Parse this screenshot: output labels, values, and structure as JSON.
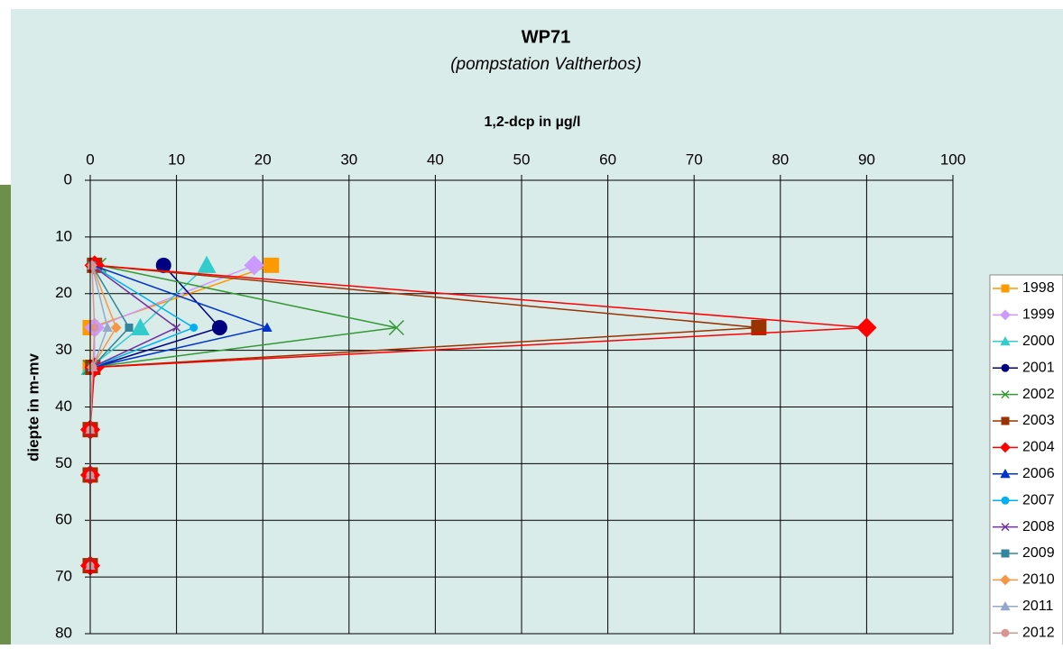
{
  "chart_data": {
    "type": "line",
    "title": "WP71",
    "subtitle": "(pompstation Valtherbos)",
    "x_label": "1,2-dcp in µg/l",
    "y_label": "diepte in m-mv",
    "y": [
      15,
      26,
      33,
      44,
      52,
      68
    ],
    "xlim": [
      0,
      100
    ],
    "xticks": [
      0,
      10,
      20,
      30,
      40,
      50,
      60,
      70,
      80,
      90,
      100
    ],
    "ylim": [
      0,
      80
    ],
    "yticks": [
      0,
      10,
      20,
      30,
      40,
      50,
      60,
      70,
      80
    ],
    "y_inverted": true,
    "grid": true,
    "series": [
      {
        "name": "1998",
        "color": "#ff9900",
        "marker": "square",
        "values": [
          21,
          0,
          0,
          null,
          null,
          null
        ]
      },
      {
        "name": "1999",
        "color": "#cc99ff",
        "marker": "diamond",
        "values": [
          19,
          0.5,
          0.5,
          null,
          null,
          null
        ]
      },
      {
        "name": "2000",
        "color": "#33cccc",
        "marker": "triangle",
        "values": [
          13.5,
          5.8,
          0,
          null,
          null,
          null
        ]
      },
      {
        "name": "2001",
        "color": "#000080",
        "marker": "circle",
        "values": [
          8.5,
          15,
          0.3,
          null,
          null,
          null
        ]
      },
      {
        "name": "2002",
        "color": "#339933",
        "marker": "x",
        "values": [
          1,
          35.5,
          0,
          null,
          null,
          null
        ]
      },
      {
        "name": "2003",
        "color": "#993300",
        "marker": "square",
        "values": [
          0.5,
          77.5,
          0.3,
          0,
          0,
          0
        ]
      },
      {
        "name": "2004",
        "color": "#ff0000",
        "marker": "diamond",
        "values": [
          0.5,
          90,
          0.5,
          0,
          0,
          0
        ]
      },
      {
        "name": "2006",
        "color": "#0033cc",
        "marker": "triangle",
        "values": [
          0.3,
          20.5,
          0.2,
          null,
          null,
          null
        ]
      },
      {
        "name": "2007",
        "color": "#00b0f0",
        "marker": "circle",
        "values": [
          0.2,
          12,
          0.2,
          null,
          null,
          null
        ]
      },
      {
        "name": "2008",
        "color": "#7030a0",
        "marker": "x",
        "values": [
          0.2,
          10,
          0.2,
          null,
          null,
          null
        ]
      },
      {
        "name": "2009",
        "color": "#31859c",
        "marker": "square",
        "values": [
          0.2,
          4.5,
          0.2,
          null,
          null,
          null
        ]
      },
      {
        "name": "2010",
        "color": "#f79646",
        "marker": "diamond",
        "values": [
          0.2,
          3,
          0.2,
          null,
          null,
          null
        ]
      },
      {
        "name": "2011",
        "color": "#95a8c8",
        "marker": "triangle",
        "values": [
          0.2,
          2,
          0.3,
          0,
          0,
          0
        ]
      },
      {
        "name": "2012",
        "color": "#d99594",
        "marker": "circle",
        "values": [
          0.2,
          0.5,
          0.3,
          0,
          0,
          0
        ]
      }
    ]
  }
}
